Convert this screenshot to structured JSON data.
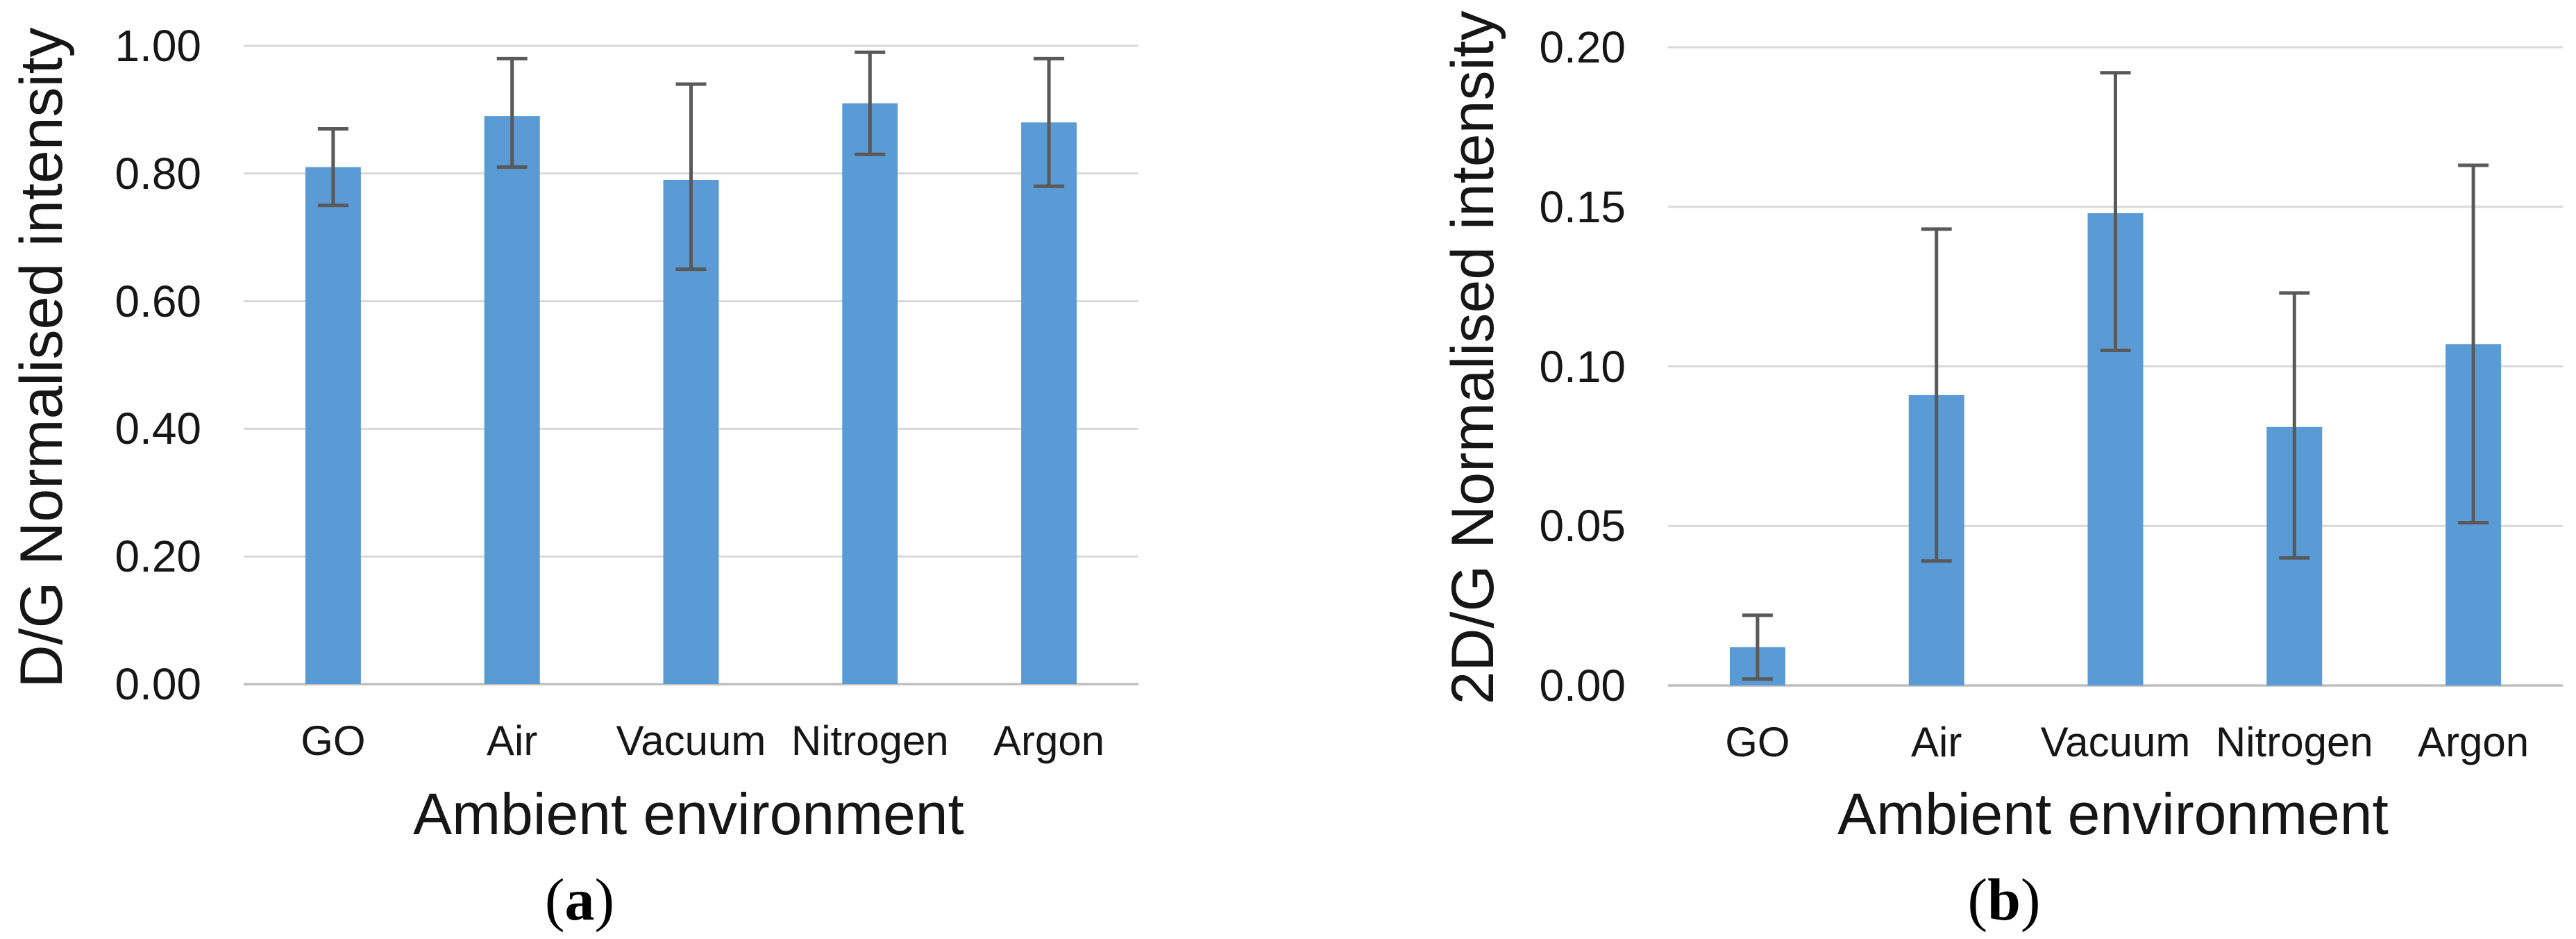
{
  "style": {
    "bar_color": "#5B9BD5",
    "error_bar_color": "#595959",
    "gridline_color": "#D9D9D9",
    "baseline_color": "#BFBFBF",
    "text_color": "#161616"
  },
  "captions": {
    "a": {
      "open": "(",
      "letter": "a",
      "close": ")"
    },
    "b": {
      "open": "(",
      "letter": "b",
      "close": ")"
    }
  },
  "chart_data": [
    {
      "type": "bar",
      "panel": "a",
      "title": "",
      "xlabel": "Ambient environment",
      "ylabel": "D/G Normalised intensity",
      "categories": [
        "GO",
        "Air",
        "Vacuum",
        "Nitrogen",
        "Argon"
      ],
      "values": [
        0.81,
        0.89,
        0.79,
        0.91,
        0.88
      ],
      "error_low": [
        0.75,
        0.81,
        0.65,
        0.83,
        0.78
      ],
      "error_high": [
        0.87,
        0.98,
        0.94,
        0.99,
        0.98
      ],
      "ylim": [
        0,
        1.0
      ],
      "ytick_step": 0.2,
      "yticks": [
        "0.00",
        "0.20",
        "0.40",
        "0.60",
        "0.80",
        "1.00"
      ],
      "grid": true,
      "legend": "none",
      "bar_color": "#5B9BD5"
    },
    {
      "type": "bar",
      "panel": "b",
      "title": "",
      "xlabel": "Ambient environment",
      "ylabel": "2D/G Normalised intensity",
      "categories": [
        "GO",
        "Air",
        "Vacuum",
        "Nitrogen",
        "Argon"
      ],
      "values": [
        0.012,
        0.091,
        0.148,
        0.081,
        0.107
      ],
      "error_low": [
        0.002,
        0.039,
        0.105,
        0.04,
        0.051
      ],
      "error_high": [
        0.022,
        0.143,
        0.192,
        0.123,
        0.163
      ],
      "ylim": [
        0,
        0.2
      ],
      "ytick_step": 0.05,
      "yticks": [
        "0.00",
        "0.05",
        "0.10",
        "0.15",
        "0.20"
      ],
      "grid": true,
      "legend": "none",
      "bar_color": "#5B9BD5"
    }
  ]
}
